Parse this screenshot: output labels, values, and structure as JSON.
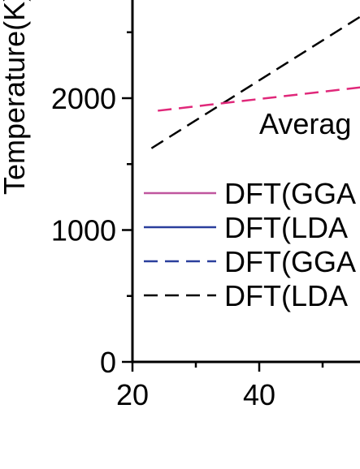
{
  "chart_data": {
    "type": "line",
    "ylabel": "Temperature(K)",
    "xlabel": "",
    "xlim": [
      20,
      61
    ],
    "ylim": [
      0,
      2800
    ],
    "x_major_ticks": [
      20,
      40
    ],
    "x_tick_labels": [
      "20",
      "40"
    ],
    "y_major_ticks": [
      0,
      1000,
      2000
    ],
    "y_tick_labels": [
      "0",
      "1000",
      "2000"
    ],
    "grid": false,
    "series": [
      {
        "name": "DFT(LDA",
        "color": "#000000",
        "dash": "dashed",
        "x": [
          23,
          56
        ],
        "y": [
          1620,
          2620
        ]
      },
      {
        "name": "Averag",
        "color": "#e0287a",
        "dash": "dashed",
        "x": [
          24,
          61
        ],
        "y": [
          1905,
          2110
        ]
      }
    ],
    "legend": {
      "placement": "left-middle",
      "entries": [
        {
          "label": "DFT(GGA",
          "color": "#c0569e",
          "dash": "solid"
        },
        {
          "label": "DFT(LDA",
          "color": "#2a3f9c",
          "dash": "solid"
        },
        {
          "label": "DFT(GGA",
          "color": "#2a3f9c",
          "dash": "dashed"
        },
        {
          "label": "DFT(LDA",
          "color": "#000000",
          "dash": "dashed"
        }
      ]
    },
    "annotations": [
      {
        "text": "Averag",
        "x": 40,
        "y": 1810
      }
    ]
  }
}
